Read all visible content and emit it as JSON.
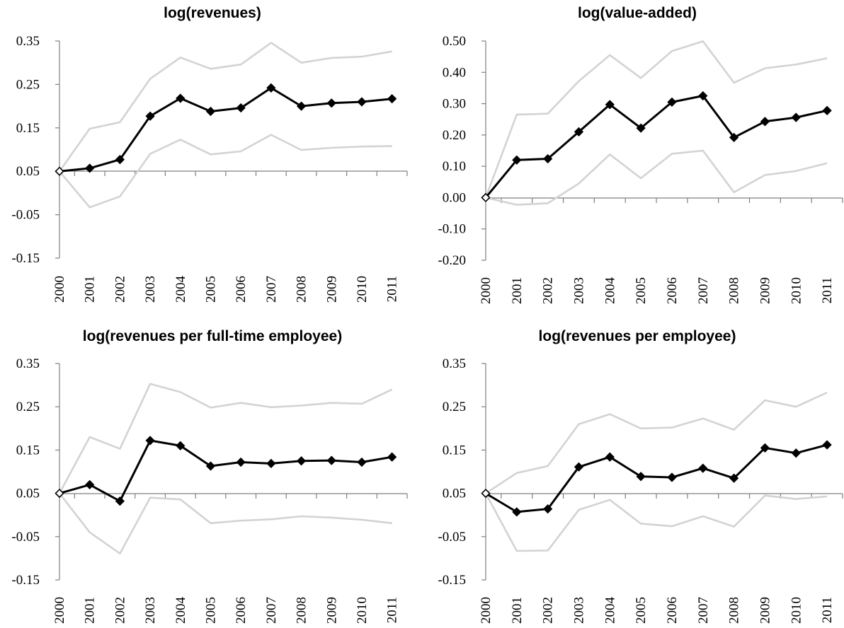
{
  "chart_data": [
    {
      "type": "line",
      "title": "log(revenues)",
      "categories": [
        "2000",
        "2001",
        "2002",
        "2003",
        "2004",
        "2005",
        "2006",
        "2007",
        "2008",
        "2009",
        "2010",
        "2011"
      ],
      "ylim": [
        -0.15,
        0.35
      ],
      "yticks": [
        "-0.15",
        "-0.05",
        "0.05",
        "0.15",
        "0.25",
        "0.35"
      ],
      "ytick_values": [
        -0.15,
        -0.05,
        0.05,
        0.15,
        0.25,
        0.35
      ],
      "grid": false,
      "series": [
        {
          "role": "estimate",
          "color": "#000000",
          "markers": true,
          "values": [
            0.05,
            0.057,
            0.077,
            0.177,
            0.218,
            0.188,
            0.196,
            0.242,
            0.2,
            0.207,
            0.21,
            0.217
          ]
        },
        {
          "role": "upper",
          "color": "#d3d3d3",
          "markers": false,
          "values": [
            0.05,
            0.148,
            0.163,
            0.263,
            0.312,
            0.286,
            0.296,
            0.346,
            0.3,
            0.311,
            0.314,
            0.326
          ]
        },
        {
          "role": "lower",
          "color": "#d3d3d3",
          "markers": false,
          "values": [
            0.05,
            -0.033,
            -0.008,
            0.09,
            0.123,
            0.089,
            0.096,
            0.134,
            0.099,
            0.104,
            0.107,
            0.108
          ]
        }
      ]
    },
    {
      "type": "line",
      "title": "log(value-added)",
      "categories": [
        "2000",
        "2001",
        "2002",
        "2003",
        "2004",
        "2005",
        "2006",
        "2007",
        "2008",
        "2009",
        "2010",
        "2011"
      ],
      "ylim": [
        -0.2,
        0.5
      ],
      "yticks": [
        "-0.20",
        "-0.10",
        "0.00",
        "0.10",
        "0.20",
        "0.30",
        "0.40",
        "0.50"
      ],
      "ytick_values": [
        -0.2,
        -0.1,
        0.0,
        0.1,
        0.2,
        0.3,
        0.4,
        0.5
      ],
      "grid": false,
      "series": [
        {
          "role": "estimate",
          "color": "#000000",
          "markers": true,
          "values": [
            0.0,
            0.12,
            0.124,
            0.21,
            0.297,
            0.222,
            0.305,
            0.325,
            0.192,
            0.243,
            0.256,
            0.278
          ]
        },
        {
          "role": "upper",
          "color": "#d3d3d3",
          "markers": false,
          "values": [
            0.0,
            0.265,
            0.268,
            0.372,
            0.455,
            0.382,
            0.468,
            0.499,
            0.367,
            0.413,
            0.425,
            0.445
          ]
        },
        {
          "role": "lower",
          "color": "#d3d3d3",
          "markers": false,
          "values": [
            0.0,
            -0.023,
            -0.018,
            0.045,
            0.138,
            0.062,
            0.14,
            0.15,
            0.017,
            0.072,
            0.085,
            0.11
          ]
        }
      ]
    },
    {
      "type": "line",
      "title": "log(revenues per full-time employee)",
      "categories": [
        "2000",
        "2001",
        "2002",
        "2003",
        "2004",
        "2005",
        "2006",
        "2007",
        "2008",
        "2009",
        "2010",
        "2011"
      ],
      "ylim": [
        -0.15,
        0.35
      ],
      "yticks": [
        "-0.15",
        "-0.05",
        "0.05",
        "0.15",
        "0.25",
        "0.35"
      ],
      "ytick_values": [
        -0.15,
        -0.05,
        0.05,
        0.15,
        0.25,
        0.35
      ],
      "grid": false,
      "series": [
        {
          "role": "estimate",
          "color": "#000000",
          "markers": true,
          "values": [
            0.05,
            0.07,
            0.032,
            0.172,
            0.16,
            0.113,
            0.122,
            0.119,
            0.125,
            0.126,
            0.122,
            0.134
          ]
        },
        {
          "role": "upper",
          "color": "#d3d3d3",
          "markers": false,
          "values": [
            0.05,
            0.18,
            0.153,
            0.303,
            0.284,
            0.248,
            0.259,
            0.249,
            0.253,
            0.259,
            0.257,
            0.29
          ]
        },
        {
          "role": "lower",
          "color": "#d3d3d3",
          "markers": false,
          "values": [
            0.05,
            -0.04,
            -0.089,
            0.04,
            0.036,
            -0.019,
            -0.013,
            -0.01,
            -0.003,
            -0.006,
            -0.011,
            -0.019
          ]
        }
      ]
    },
    {
      "type": "line",
      "title": "log(revenues per employee)",
      "categories": [
        "2000",
        "2001",
        "2002",
        "2003",
        "2004",
        "2005",
        "2006",
        "2007",
        "2008",
        "2009",
        "2010",
        "2011"
      ],
      "ylim": [
        -0.15,
        0.35
      ],
      "yticks": [
        "-0.15",
        "-0.05",
        "0.05",
        "0.15",
        "0.25",
        "0.35"
      ],
      "ytick_values": [
        -0.15,
        -0.05,
        0.05,
        0.15,
        0.25,
        0.35
      ],
      "grid": false,
      "series": [
        {
          "role": "estimate",
          "color": "#000000",
          "markers": true,
          "values": [
            0.05,
            0.007,
            0.014,
            0.111,
            0.134,
            0.089,
            0.087,
            0.108,
            0.085,
            0.155,
            0.143,
            0.162
          ]
        },
        {
          "role": "upper",
          "color": "#d3d3d3",
          "markers": false,
          "values": [
            0.05,
            0.097,
            0.113,
            0.21,
            0.233,
            0.2,
            0.202,
            0.223,
            0.197,
            0.265,
            0.25,
            0.283
          ]
        },
        {
          "role": "lower",
          "color": "#d3d3d3",
          "markers": false,
          "values": [
            0.05,
            -0.083,
            -0.082,
            0.012,
            0.035,
            -0.02,
            -0.026,
            -0.003,
            -0.027,
            0.045,
            0.037,
            0.043
          ]
        }
      ]
    }
  ]
}
